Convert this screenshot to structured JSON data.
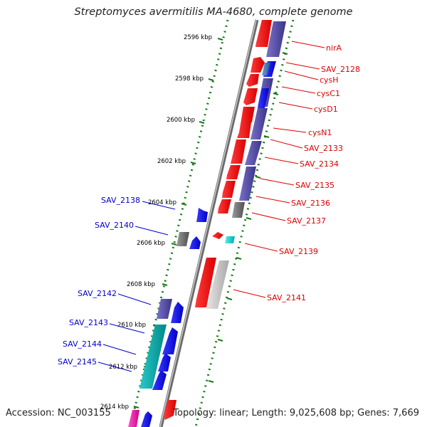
{
  "title": "Streptomyces avermitilis MA-4680, complete genome",
  "footer": {
    "accession": "Accession: NC_003155",
    "summary": "Topology: linear; Length: 9,025,608 bp; Genes: 7,669"
  },
  "colors": {
    "backbone": "#8a8a8a",
    "ticks": "#1a7a1a",
    "label_right": "#dd0000",
    "label_left": "#0000cc"
  },
  "ticks": [
    "2596 kbp",
    "2598 kbp",
    "2600 kbp",
    "2602 kbp",
    "2604 kbp",
    "2606 kbp",
    "2608 kbp",
    "2610 kbp",
    "2612 kbp",
    "2614 kbp"
  ],
  "labels_right": [
    "nirA",
    "SAV_2128",
    "cysH",
    "cysC1",
    "cysD1",
    "cysN1",
    "SAV_2133",
    "SAV_2134",
    "SAV_2135",
    "SAV_2136",
    "SAV_2137",
    "SAV_2139",
    "SAV_2141"
  ],
  "labels_left": [
    "SAV_2138",
    "SAV_2140",
    "SAV_2142",
    "SAV_2143",
    "SAV_2144",
    "SAV_2145"
  ]
}
